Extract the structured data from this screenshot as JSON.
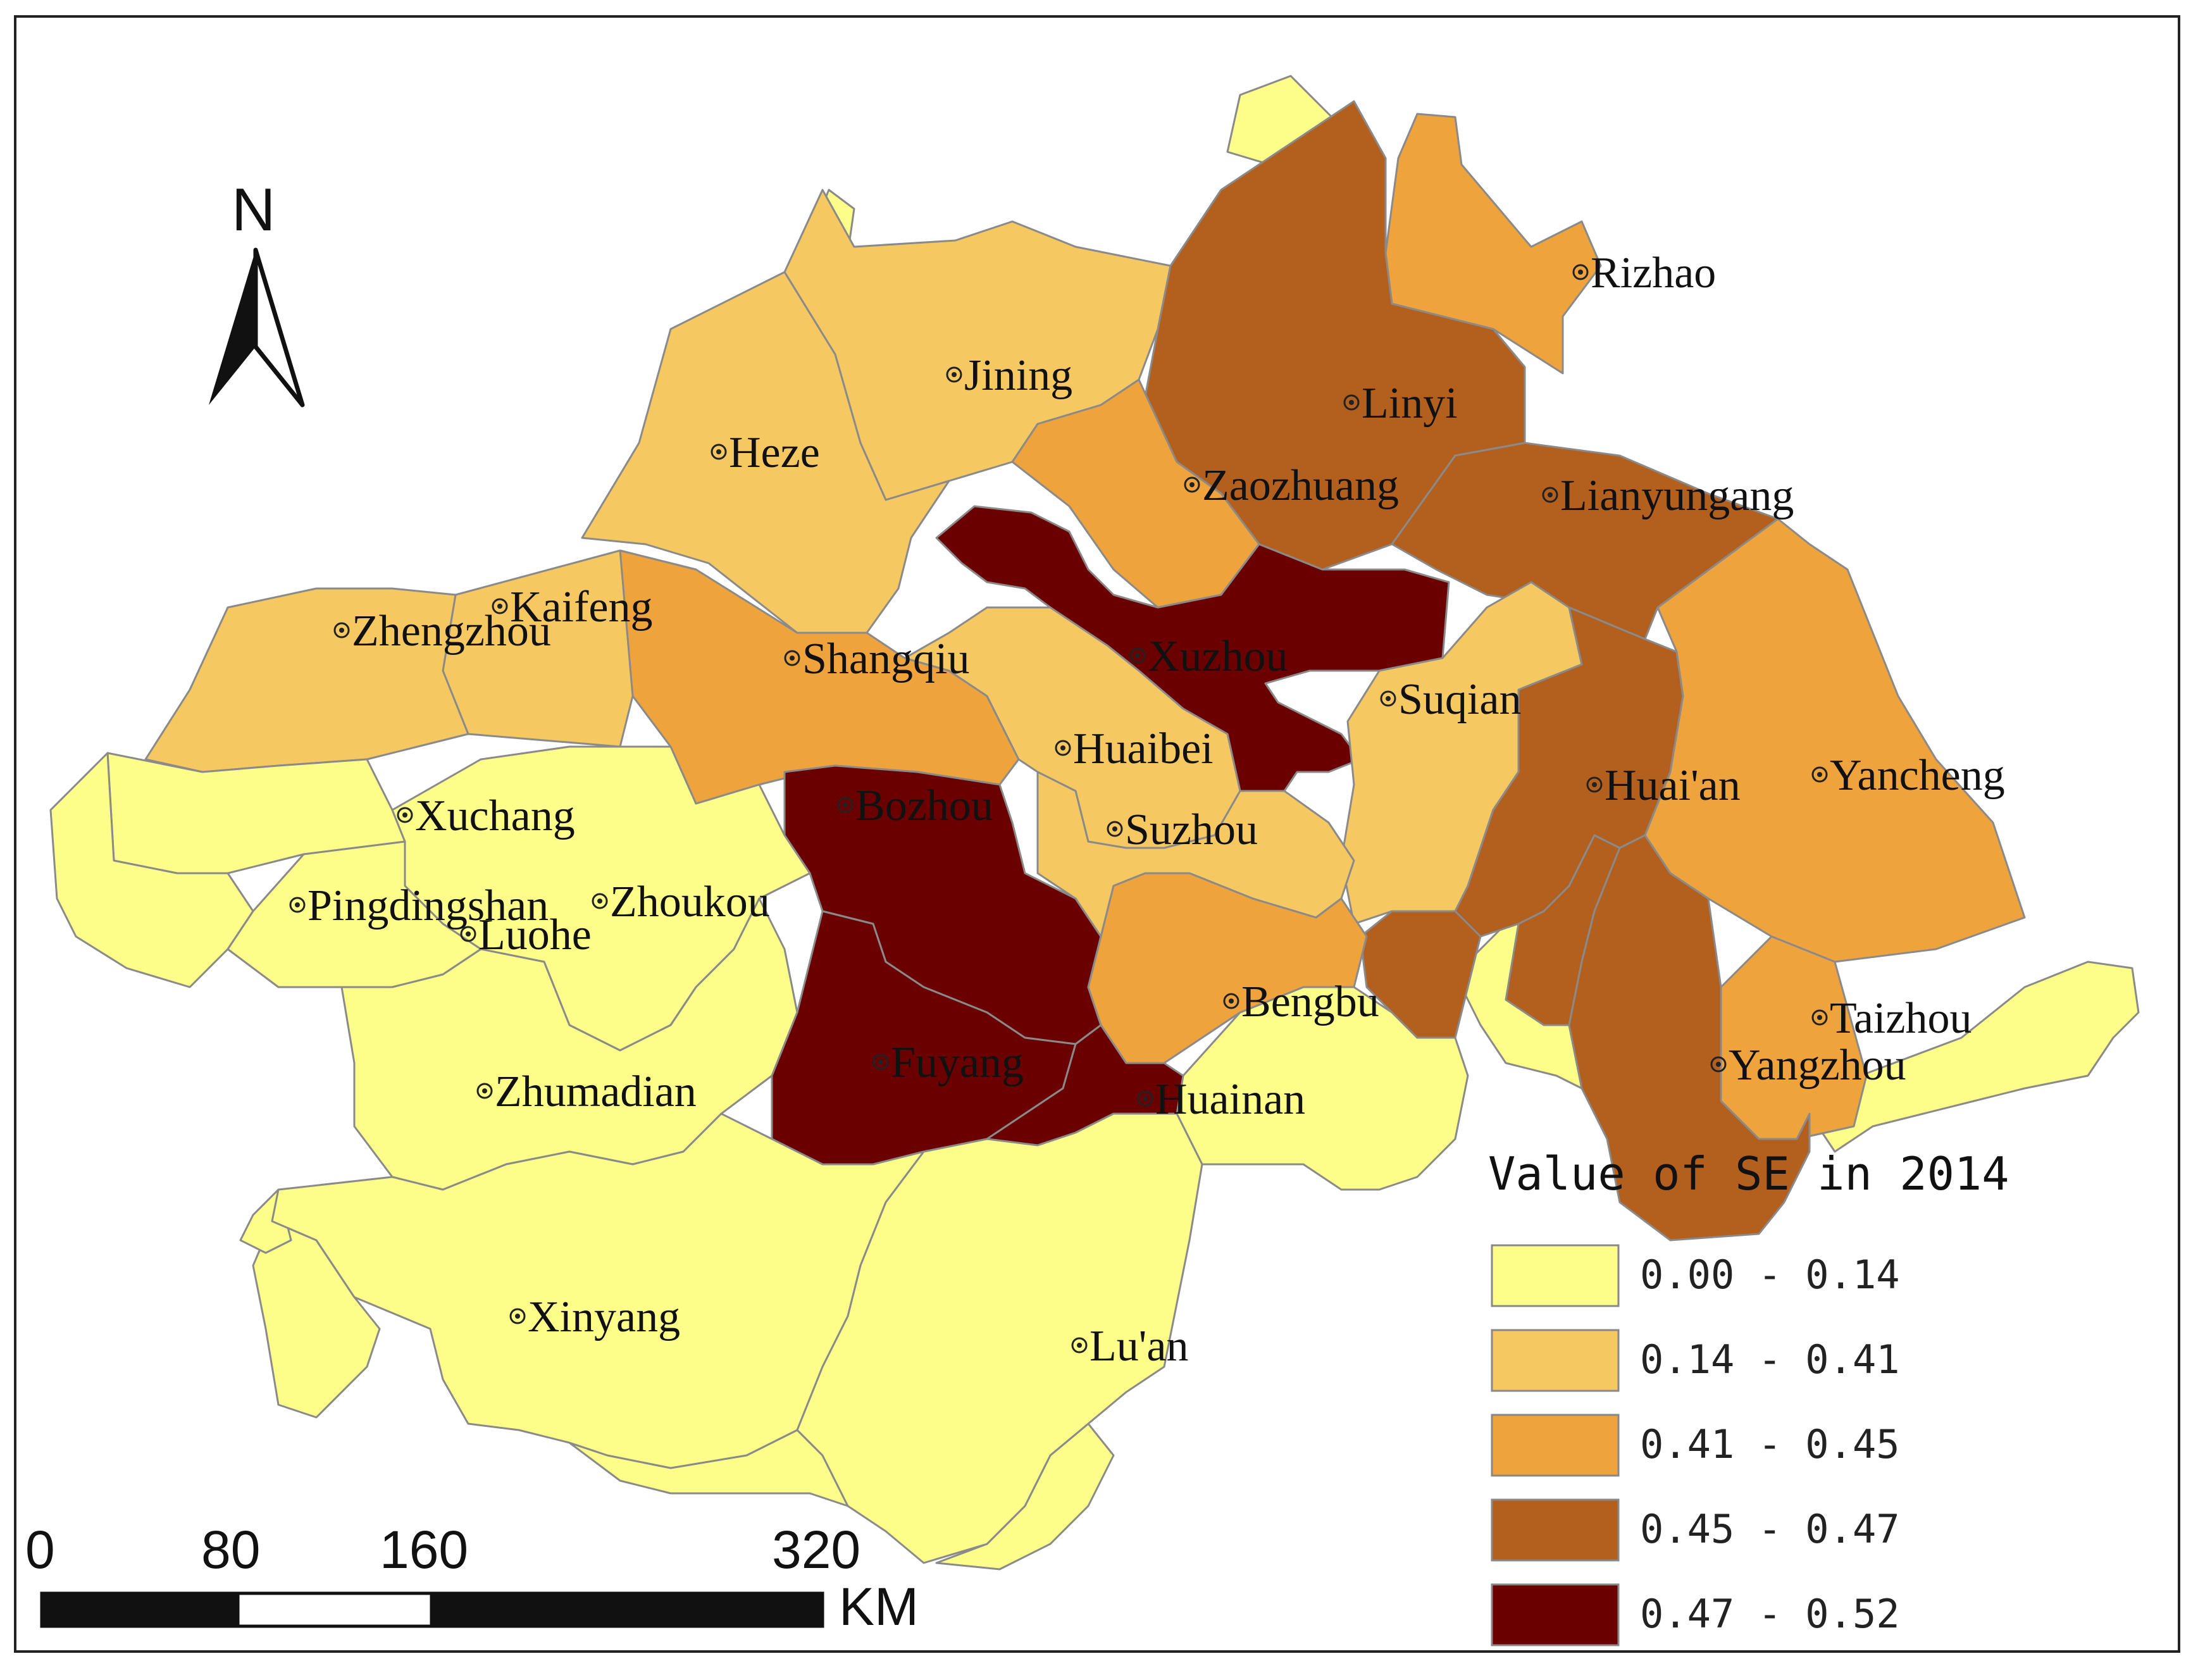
{
  "legend": {
    "title": "Value of SE in 2014",
    "classes": [
      {
        "label": "0.00 - 0.14",
        "color": "#fdfd8a"
      },
      {
        "label": "0.14 - 0.41",
        "color": "#f6c862"
      },
      {
        "label": "0.41 - 0.45",
        "color": "#eea33c"
      },
      {
        "label": "0.45 - 0.47",
        "color": "#b35f1e"
      },
      {
        "label": "0.47 - 0.52",
        "color": "#6b0000"
      }
    ]
  },
  "north_arrow": {
    "label": "N"
  },
  "scale_bar": {
    "ticks": [
      "0",
      "80",
      "160",
      "320"
    ],
    "unit": "KM"
  },
  "cities": [
    {
      "name": "Rizhao",
      "class": 2
    },
    {
      "name": "Jining",
      "class": 1
    },
    {
      "name": "Linyi",
      "class": 3
    },
    {
      "name": "Heze",
      "class": 1
    },
    {
      "name": "Zaozhuang",
      "class": 2
    },
    {
      "name": "Lianyungang",
      "class": 3
    },
    {
      "name": "Kaifeng",
      "class": 1
    },
    {
      "name": "Zhengzhou",
      "class": 1
    },
    {
      "name": "Shangqiu",
      "class": 2
    },
    {
      "name": "Xuzhou",
      "class": 4
    },
    {
      "name": "Suqian",
      "class": 1
    },
    {
      "name": "Huaibei",
      "class": 1
    },
    {
      "name": "Huai'an",
      "class": 3
    },
    {
      "name": "Yancheng",
      "class": 2
    },
    {
      "name": "Xuchang",
      "class": 0
    },
    {
      "name": "Bozhou",
      "class": 4
    },
    {
      "name": "Suzhou",
      "class": 1
    },
    {
      "name": "Pingdingshan",
      "class": 0
    },
    {
      "name": "Zhoukou",
      "class": 0
    },
    {
      "name": "Luohe",
      "class": 0
    },
    {
      "name": "Bengbu",
      "class": 2
    },
    {
      "name": "Taizhou",
      "class": 2
    },
    {
      "name": "Zhumadian",
      "class": 0
    },
    {
      "name": "Fuyang",
      "class": 4
    },
    {
      "name": "Huainan",
      "class": 4
    },
    {
      "name": "Yangzhou",
      "class": 3
    },
    {
      "name": "Xinyang",
      "class": 0
    },
    {
      "name": "Lu'an",
      "class": 0
    }
  ]
}
